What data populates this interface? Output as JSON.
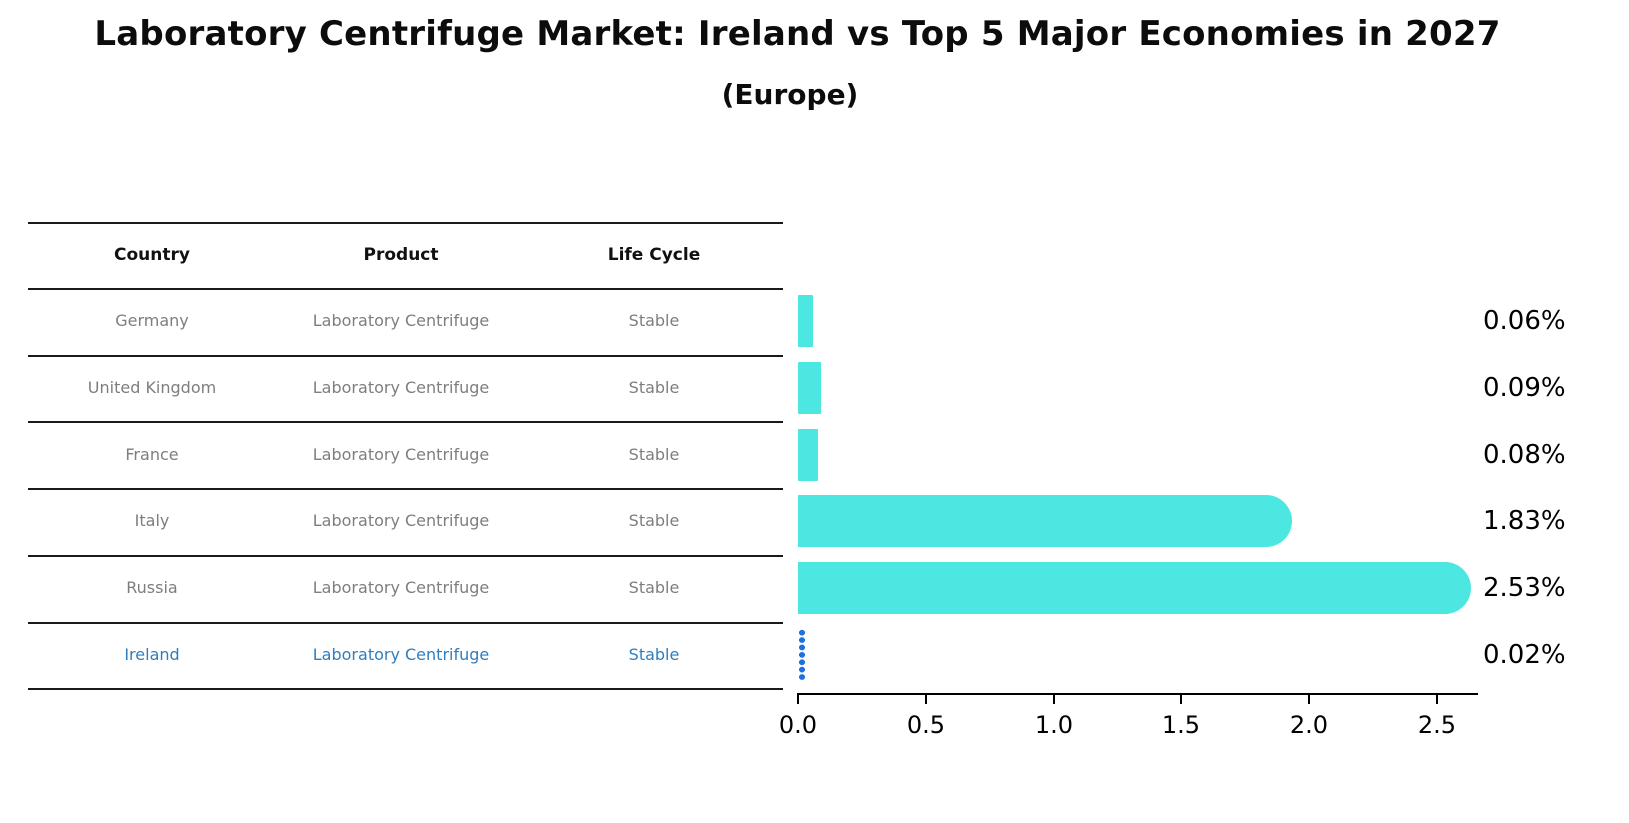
{
  "title": "Laboratory Centrifuge Market: Ireland vs Top 5 Major Economies in 2027",
  "subtitle": "(Europe)",
  "table": {
    "headers": [
      "Country",
      "Product",
      "Life Cycle"
    ],
    "rows": [
      {
        "country": "Germany",
        "product": "Laboratory Centrifuge",
        "life_cycle": "Stable",
        "highlighted": false
      },
      {
        "country": "United Kingdom",
        "product": "Laboratory Centrifuge",
        "life_cycle": "Stable",
        "highlighted": false
      },
      {
        "country": "France",
        "product": "Laboratory Centrifuge",
        "life_cycle": "Stable",
        "highlighted": false
      },
      {
        "country": "Italy",
        "product": "Laboratory Centrifuge",
        "life_cycle": "Stable",
        "highlighted": false
      },
      {
        "country": "Russia",
        "product": "Laboratory Centrifuge",
        "life_cycle": "Stable",
        "highlighted": false
      },
      {
        "country": "Ireland",
        "product": "Laboratory Centrifuge",
        "life_cycle": "Stable",
        "highlighted": true
      }
    ]
  },
  "chart_data": {
    "type": "bar",
    "orientation": "horizontal",
    "title": "Laboratory Centrifuge Market: Ireland vs Top 5 Major Economies in 2027",
    "subtitle": "(Europe)",
    "categories": [
      "Germany",
      "United Kingdom",
      "France",
      "Italy",
      "Russia",
      "Ireland"
    ],
    "values": [
      0.06,
      0.09,
      0.08,
      1.83,
      2.53,
      0.02
    ],
    "value_labels": [
      "0.06%",
      "0.09%",
      "0.08%",
      "1.83%",
      "2.53%",
      "0.02%"
    ],
    "x_ticks": [
      0.0,
      0.5,
      1.0,
      1.5,
      2.0,
      2.5
    ],
    "x_tick_labels": [
      "0.0",
      "0.5",
      "1.0",
      "1.5",
      "2.0",
      "2.5"
    ],
    "xlim": [
      0,
      2.66
    ],
    "grid": false,
    "legend": false,
    "highlight_index": 5
  },
  "colors": {
    "bar": "#4BE7E0",
    "highlight_bar": "#1E6FE0",
    "row_text": "#7e7e7e",
    "highlight_text": "#2E7EBF",
    "header_text": "#111111",
    "rule": "#1a1a1a",
    "value_label": "#000000",
    "axis": "#000000"
  }
}
